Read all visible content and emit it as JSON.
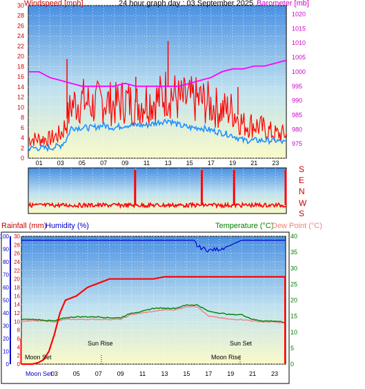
{
  "top": {
    "left_axis_title": "Windspeed [mph]",
    "title": "24 hour graph day : 03 September 2025",
    "right_axis_title": "Barometer [mb]"
  },
  "middle": {
    "compass_labels": [
      "S",
      "E",
      "N",
      "W",
      "S"
    ]
  },
  "bottom": {
    "rain_label": "Rainfall (mm)",
    "humidity_label": "Humidity (%)",
    "temp_label": "Temperature (°C)",
    "dew_label": "Dew Point (°C)",
    "sun_rise": "Sun Rise",
    "sun_set": "Sun Set",
    "moon_set": "Moon Set",
    "moon_rise": "Moon Rise",
    "bottom_moon": "Moon Set",
    "bottom_moon_rise": "Moon Rise"
  },
  "colors": {
    "windspeed": "#ff0000",
    "avg_wind": "#1e90ff",
    "barometer": "#ff00ff",
    "rain": "#ff0000",
    "humidity": "#0000cc",
    "temperature": "#008000",
    "dew_point": "#f08080",
    "left_axis": "#cc0000",
    "right_axis": "#cc00cc"
  },
  "chart_data": [
    {
      "type": "line",
      "x_ticks": [
        "01",
        "03",
        "05",
        "07",
        "09",
        "11",
        "13",
        "15",
        "17",
        "19",
        "21",
        "23"
      ],
      "left_ticks": [
        0,
        2,
        4,
        6,
        8,
        10,
        12,
        14,
        16,
        18,
        20,
        22,
        24,
        26,
        28,
        30
      ],
      "right_ticks": [
        975,
        980,
        985,
        990,
        995,
        1000,
        1005,
        1010,
        1015,
        1020
      ],
      "ylim": [
        0,
        30
      ],
      "y2lim": [
        970,
        1023
      ],
      "series": [
        {
          "name": "Windspeed [mph]",
          "axis": "left",
          "x": [
            0,
            1,
            2,
            3,
            3.5,
            4,
            5,
            6,
            7,
            8,
            9,
            10,
            11,
            12,
            13,
            14,
            15,
            16,
            17,
            18,
            19,
            20,
            21,
            22,
            23,
            24
          ],
          "values": [
            4,
            4,
            4,
            5,
            7,
            11,
            12,
            11,
            12,
            11,
            12,
            11,
            12,
            12,
            14,
            12,
            12,
            12,
            11,
            10,
            10,
            7,
            7,
            6,
            5,
            5
          ]
        },
        {
          "name": "Avg speed",
          "axis": "left",
          "x": [
            0,
            1,
            2,
            3,
            3.5,
            4,
            5,
            6,
            7,
            8,
            9,
            10,
            11,
            12,
            13,
            14,
            15,
            16,
            17,
            18,
            19,
            20,
            21,
            22,
            23,
            24
          ],
          "values": [
            2,
            2,
            2,
            2.5,
            3.5,
            6,
            6,
            6,
            6.5,
            6,
            6.5,
            6.5,
            6.5,
            7,
            7.5,
            6.5,
            6,
            6,
            5.5,
            5,
            4.5,
            3.5,
            3.5,
            3.5,
            3.5,
            3
          ]
        },
        {
          "name": "Barometer [mb]",
          "axis": "right",
          "x": [
            0,
            1,
            2,
            3,
            4,
            5,
            6,
            7,
            8,
            9,
            10,
            11,
            12,
            13,
            14,
            15,
            16,
            17,
            18,
            19,
            20,
            21,
            22,
            23,
            24
          ],
          "values": [
            1000,
            1000,
            998,
            997,
            996,
            995,
            995,
            995,
            995,
            996,
            995,
            995,
            995,
            995,
            995,
            996,
            997,
            998,
            1000,
            1001,
            1001,
            1002,
            1002,
            1003,
            1004
          ]
        }
      ]
    },
    {
      "type": "scatter",
      "title": "Wind direction",
      "x": [
        0,
        2,
        4,
        6,
        8,
        10,
        10,
        12,
        14,
        16,
        18,
        19,
        20,
        22,
        24
      ],
      "series": [
        {
          "name": "Direction",
          "values": [
            "W",
            "W",
            "W",
            "W",
            "W",
            "W",
            "S",
            "W",
            "W",
            "W",
            "W",
            "S",
            "W",
            "W",
            "W"
          ]
        }
      ]
    },
    {
      "type": "line",
      "x_ticks": [
        "03",
        "05",
        "07",
        "09",
        "11",
        "13",
        "15",
        "17",
        "19",
        "21",
        "23"
      ],
      "humidity_ticks": [
        0,
        10,
        20,
        30,
        40,
        50,
        60,
        70,
        80,
        90,
        100
      ],
      "rain_ticks": [
        0,
        2,
        4,
        6,
        8,
        10,
        12,
        14,
        16,
        18,
        20,
        22,
        24,
        26,
        28,
        30
      ],
      "temp_ticks": [
        0,
        5,
        10,
        15,
        20,
        25,
        30,
        35,
        40
      ],
      "series": [
        {
          "name": "Humidity (%)",
          "axis": "humidity",
          "x": [
            0,
            1,
            2,
            3,
            4,
            5,
            6,
            7,
            8,
            9,
            10,
            11,
            12,
            13,
            14,
            15,
            15.7,
            16,
            17,
            18,
            19,
            20,
            21,
            22,
            23,
            24
          ],
          "values": [
            97,
            97,
            97,
            97,
            97,
            97,
            97,
            97,
            97,
            97,
            97,
            97,
            97,
            97,
            97,
            97,
            97,
            92,
            89,
            90,
            93,
            97,
            97,
            97,
            97,
            97
          ]
        },
        {
          "name": "Rainfall (mm)",
          "axis": "rain",
          "x": [
            0,
            0.3,
            1,
            1.5,
            2,
            2.5,
            3,
            3.5,
            4,
            5,
            6,
            6.5,
            7,
            8,
            9,
            10,
            11,
            12,
            13,
            14,
            15,
            16,
            17,
            18,
            19,
            20,
            21,
            22,
            23,
            24
          ],
          "values": [
            0,
            0,
            0,
            0.3,
            1,
            3,
            7,
            12,
            15,
            16,
            18,
            18.5,
            19,
            20,
            20,
            20,
            20,
            20,
            20.5,
            20.5,
            20.5,
            20.5,
            20.5,
            20.5,
            20.5,
            20.5,
            20.5,
            20.5,
            20.5,
            20.5
          ]
        },
        {
          "name": "Temperature (°C)",
          "axis": "temp",
          "x": [
            0,
            1,
            2,
            3,
            4,
            5,
            6,
            7,
            8,
            9,
            10,
            11,
            12,
            13,
            14,
            15,
            16,
            16.5,
            17,
            18,
            19,
            20,
            21,
            22,
            23,
            24
          ],
          "values": [
            14,
            14,
            13.8,
            13.5,
            14.5,
            14.8,
            14.8,
            14.8,
            14.5,
            14.5,
            16,
            16.5,
            17.5,
            17.5,
            17.5,
            18.5,
            18.5,
            17.5,
            16.5,
            16,
            15.5,
            15.5,
            14,
            13.5,
            13.5,
            13
          ]
        },
        {
          "name": "Dew Point (°C)",
          "axis": "temp",
          "x": [
            0,
            1,
            2,
            3,
            4,
            5,
            6,
            7,
            8,
            9,
            10,
            11,
            12,
            13,
            14,
            15,
            16,
            16.5,
            17,
            18,
            19,
            20,
            21,
            22,
            23,
            24
          ],
          "values": [
            13.5,
            13.5,
            13.5,
            13.3,
            14,
            14,
            14,
            14,
            14,
            14,
            15.5,
            16,
            16.5,
            17,
            17,
            18,
            18,
            16.5,
            15,
            14.5,
            14,
            14,
            13.5,
            13.2,
            13.2,
            12.8
          ]
        }
      ]
    }
  ]
}
